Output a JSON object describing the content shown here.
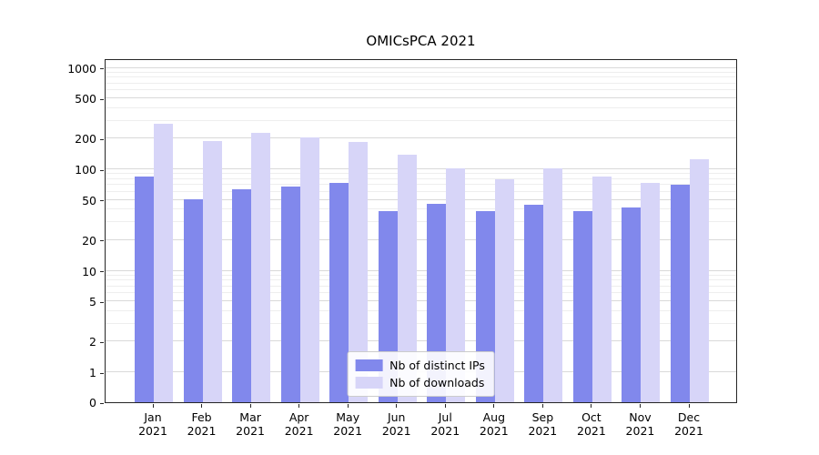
{
  "chart_data": {
    "type": "bar",
    "title": "OMICsPCA 2021",
    "categories": [
      "Jan 2021",
      "Feb 2021",
      "Mar 2021",
      "Apr 2021",
      "May 2021",
      "Jun 2021",
      "Jul 2021",
      "Aug 2021",
      "Sep 2021",
      "Oct 2021",
      "Nov 2021",
      "Dec 2021"
    ],
    "series": [
      {
        "name": "Nb of distinct IPs",
        "color": "#8188ec",
        "values": [
          85,
          51,
          64,
          68,
          74,
          39,
          46,
          39,
          45,
          39,
          42,
          70
        ]
      },
      {
        "name": "Nb of downloads",
        "color": "#d7d5f8",
        "values": [
          280,
          190,
          230,
          205,
          185,
          140,
          103,
          80,
          103,
          85,
          73,
          125
        ]
      }
    ],
    "yscale": "symlog",
    "yticks": [
      0,
      1,
      2,
      5,
      10,
      20,
      50,
      100,
      200,
      500,
      1000
    ],
    "ylim": [
      0,
      1000
    ],
    "xlabel": "",
    "ylabel": "",
    "grid": true,
    "legend_position": "lower center"
  }
}
